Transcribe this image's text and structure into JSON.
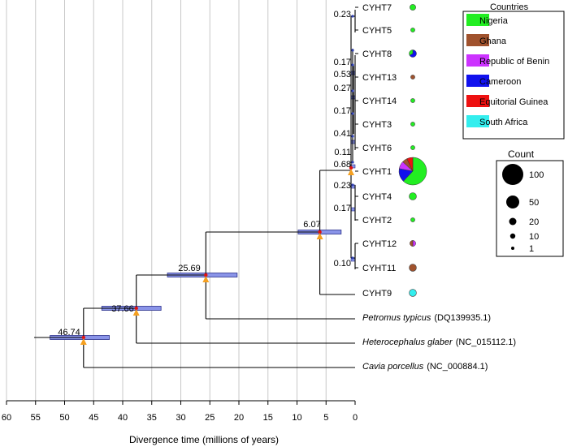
{
  "axis": {
    "label": "Divergence time (millions of years)",
    "ticks": [
      60,
      55,
      50,
      45,
      40,
      35,
      30,
      25,
      20,
      15,
      10,
      5,
      0
    ],
    "min": 60,
    "max": 0
  },
  "tips": [
    {
      "id": "cyht7",
      "label": "CYHT7",
      "kind": "haplotype"
    },
    {
      "id": "cyht5",
      "label": "CYHT5",
      "kind": "haplotype"
    },
    {
      "id": "cyht8",
      "label": "CYHT8",
      "kind": "haplotype"
    },
    {
      "id": "cyht13",
      "label": "CYHT13",
      "kind": "haplotype"
    },
    {
      "id": "cyht14",
      "label": "CYHT14",
      "kind": "haplotype"
    },
    {
      "id": "cyht3",
      "label": "CYHT3",
      "kind": "haplotype"
    },
    {
      "id": "cyht6",
      "label": "CYHT6",
      "kind": "haplotype"
    },
    {
      "id": "cyht1",
      "label": "CYHT1",
      "kind": "haplotype"
    },
    {
      "id": "cyht4",
      "label": "CYHT4",
      "kind": "haplotype"
    },
    {
      "id": "cyht2",
      "label": "CYHT2",
      "kind": "haplotype"
    },
    {
      "id": "cyht12",
      "label": "CYHT12",
      "kind": "haplotype"
    },
    {
      "id": "cyht11",
      "label": "CYHT11",
      "kind": "haplotype"
    },
    {
      "id": "cyht9",
      "label": "CYHT9",
      "kind": "haplotype"
    },
    {
      "id": "petromus",
      "species": "Petromus typicus",
      "accession": "(DQ139935.1)",
      "kind": "outgroup"
    },
    {
      "id": "heterocephalus",
      "species": "Heterocephalus glaber",
      "accession": "(NC_015112.1)",
      "kind": "outgroup"
    },
    {
      "id": "cavia",
      "species": "Cavia porcellus",
      "accession": "(NC_000884.1)",
      "kind": "outgroup"
    }
  ],
  "nodes": [
    {
      "id": "n46",
      "age": 46.74,
      "label": "46.74",
      "hpd": [
        52.5,
        42.3
      ]
    },
    {
      "id": "n37",
      "age": 37.66,
      "label": "37.66",
      "hpd": [
        43.6,
        33.4
      ]
    },
    {
      "id": "n25",
      "age": 25.69,
      "label": "25.69",
      "hpd": [
        32.3,
        20.3
      ]
    },
    {
      "id": "n6",
      "age": 6.07,
      "label": "6.07",
      "hpd": [
        9.8,
        2.4
      ]
    }
  ],
  "small_node_labels": [
    "0.23",
    "0.17",
    "0.53",
    "0.27",
    "0.17",
    "0.41",
    "0.11",
    "0.68",
    "0.23",
    "0.17",
    "0.10"
  ],
  "legend": {
    "title": "Countries",
    "items": [
      {
        "name": "Nigeria",
        "color": "#22ee22"
      },
      {
        "name": "Ghana",
        "color": "#a0522d"
      },
      {
        "name": "Republic of Benin",
        "color": "#cc33ff"
      },
      {
        "name": "Cameroon",
        "color": "#1111ee"
      },
      {
        "name": "Equitorial Guinea",
        "color": "#ee1111"
      },
      {
        "name": "South Africa",
        "color": "#33eeee"
      }
    ]
  },
  "count_legend": {
    "title": "Count",
    "items": [
      {
        "value": 100,
        "label": "100"
      },
      {
        "value": 50,
        "label": "50"
      },
      {
        "value": 20,
        "label": "20"
      },
      {
        "value": 10,
        "label": "10"
      },
      {
        "value": 1,
        "label": "1"
      }
    ]
  },
  "haplotype_counts": [
    {
      "id": "cyht7",
      "count": 2,
      "slices": [
        {
          "country": "Nigeria",
          "value": 2
        }
      ]
    },
    {
      "id": "cyht5",
      "count": 1,
      "slices": [
        {
          "country": "Nigeria",
          "value": 1
        }
      ]
    },
    {
      "id": "cyht8",
      "count": 6,
      "slices": [
        {
          "country": "Cameroon",
          "value": 4
        },
        {
          "country": "Nigeria",
          "value": 2
        }
      ]
    },
    {
      "id": "cyht13",
      "count": 1,
      "slices": [
        {
          "country": "Ghana",
          "value": 1
        }
      ]
    },
    {
      "id": "cyht14",
      "count": 1,
      "slices": [
        {
          "country": "Nigeria",
          "value": 1
        }
      ]
    },
    {
      "id": "cyht3",
      "count": 1,
      "slices": [
        {
          "country": "Nigeria",
          "value": 1
        }
      ]
    },
    {
      "id": "cyht6",
      "count": 1,
      "slices": [
        {
          "country": "Nigeria",
          "value": 1
        }
      ]
    },
    {
      "id": "cyht1",
      "count": 100,
      "slices": [
        {
          "country": "Nigeria",
          "value": 62
        },
        {
          "country": "Cameroon",
          "value": 16
        },
        {
          "country": "Republic of Benin",
          "value": 9
        },
        {
          "country": "Ghana",
          "value": 6
        },
        {
          "country": "Equitorial Guinea",
          "value": 7
        }
      ]
    },
    {
      "id": "cyht4",
      "count": 8,
      "slices": [
        {
          "country": "Nigeria",
          "value": 8
        }
      ]
    },
    {
      "id": "cyht2",
      "count": 1,
      "slices": [
        {
          "country": "Nigeria",
          "value": 1
        }
      ]
    },
    {
      "id": "cyht12",
      "count": 2,
      "slices": [
        {
          "country": "Republic of Benin",
          "value": 1
        },
        {
          "country": "Ghana",
          "value": 1
        }
      ]
    },
    {
      "id": "cyht11",
      "count": 3,
      "slices": [
        {
          "country": "Ghana",
          "value": 3
        }
      ]
    },
    {
      "id": "cyht9",
      "count": 3,
      "slices": [
        {
          "country": "South Africa",
          "value": 3
        }
      ]
    }
  ]
}
